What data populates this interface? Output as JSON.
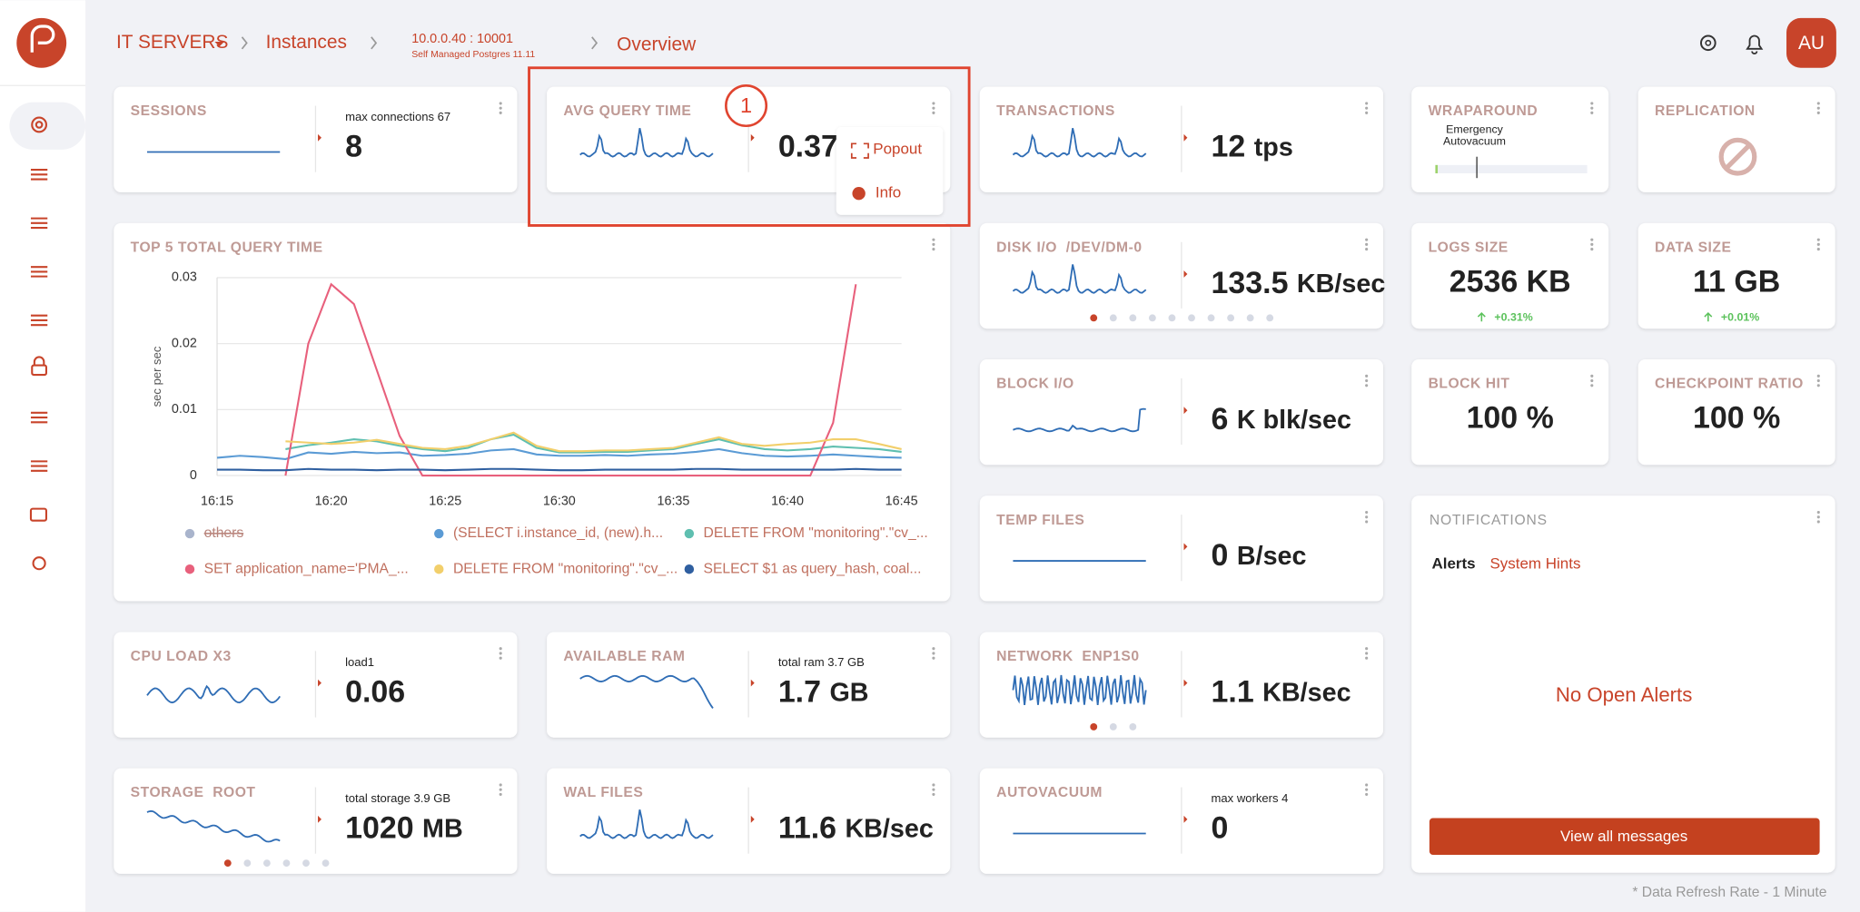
{
  "breadcrumb": {
    "root": "IT SERVERS",
    "instances": "Instances",
    "server": "10.0.0.40 : 10001",
    "server_type": "Self Managed Postgres 11.11",
    "current": "Overview"
  },
  "avatar": "AU",
  "metric_cards": [
    {
      "title": "SESSIONS",
      "label": "max connections 67",
      "value": "8"
    },
    {
      "title": "AVG QUERY TIME",
      "value": "0.37"
    },
    {
      "title": "TRANSACTIONS",
      "value": "12",
      "unit": "tps"
    },
    {
      "title": "WRAPAROUND",
      "label": "Emergency Autovacuum"
    },
    {
      "title": "REPLICATION"
    },
    {
      "title": "DISK I/O  /DEV/DM-0",
      "value": "133.5",
      "unit": "KB/sec"
    },
    {
      "title": "LOGS SIZE",
      "value": "2536 KB",
      "change": "+0.31%"
    },
    {
      "title": "DATA SIZE",
      "value": "11 GB",
      "change": "+0.01%"
    },
    {
      "title": "BLOCK I/O",
      "value": "6",
      "unit": "K blk/sec"
    },
    {
      "title": "BLOCK HIT",
      "value": "100 %"
    },
    {
      "title": "CHECKPOINT RATIO",
      "value": "100 %"
    },
    {
      "title": "TEMP FILES",
      "value": "0",
      "unit": "B/sec"
    },
    {
      "title": "CPU LOAD X3",
      "label": "load1",
      "value": "0.06"
    },
    {
      "title": "AVAILABLE RAM",
      "label": "total ram 3.7 GB",
      "value": "1.7",
      "unit": "GB"
    },
    {
      "title": "NETWORK  ENP1S0",
      "value": "1.1",
      "unit": "KB/sec"
    },
    {
      "title": "STORAGE  ROOT",
      "label": "total storage 3.9 GB",
      "value": "1020",
      "unit": "MB"
    },
    {
      "title": "WAL FILES",
      "value": "11.6",
      "unit": "KB/sec"
    },
    {
      "title": "AUTOVACUUM",
      "label": "max workers 4",
      "value": "0"
    }
  ],
  "popup": {
    "marker": "1",
    "items": [
      "Popout",
      "Info"
    ]
  },
  "query_chart": {
    "type": "line",
    "title": "TOP 5 TOTAL QUERY TIME",
    "y_label": "sec per sec",
    "categories": [
      "16:15",
      null,
      null,
      null,
      null,
      "16:20",
      null,
      null,
      null,
      null,
      "16:25",
      null,
      null,
      null,
      null,
      "16:30",
      null,
      null,
      null,
      null,
      "16:35",
      null,
      null,
      null,
      null,
      "16:40",
      null,
      null,
      null,
      null,
      "16:45"
    ],
    "ylim": [
      0,
      0.03
    ],
    "yticks": [
      0,
      0.01,
      0.02,
      0.03
    ],
    "grid": true,
    "series": [
      {
        "name": "others",
        "color": "#a9b4cc",
        "hidden": true
      },
      {
        "name": "(SELECT i.instance_id, (new).h...",
        "color": "#5b9bd5",
        "values": [
          0.0027,
          0.003,
          0.0028,
          0.0025,
          0.0035,
          0.0033,
          0.0036,
          0.0034,
          0.0035,
          0.003,
          0.0031,
          0.0033,
          0.0038,
          0.004,
          0.0032,
          0.003,
          0.003,
          0.0031,
          0.003,
          0.0032,
          0.0033,
          0.0036,
          0.004,
          0.0034,
          0.003,
          0.0029,
          0.003,
          0.0032,
          0.003,
          0.0028,
          0.0027
        ]
      },
      {
        "name": "DELETE FROM \"monitoring\".\"cv_...",
        "color": "#5fbfb0",
        "values": [
          null,
          null,
          null,
          0.004,
          0.0046,
          0.005,
          0.0055,
          0.0052,
          0.0045,
          0.004,
          0.0037,
          0.0042,
          0.0055,
          0.0062,
          0.0042,
          0.0035,
          0.0035,
          0.0036,
          0.0036,
          0.0038,
          0.004,
          0.0048,
          0.0055,
          0.0046,
          0.004,
          0.0038,
          0.004,
          0.0044,
          0.0042,
          0.004,
          0.0036
        ]
      },
      {
        "name": "SET application_name='PMA_...",
        "color": "#e8607c",
        "values": [
          null,
          null,
          null,
          0,
          0.02,
          0.029,
          0.026,
          0.016,
          0.006,
          0,
          0,
          0,
          0,
          0,
          0,
          0,
          0,
          0,
          0,
          0,
          0,
          0,
          0,
          0,
          0,
          0,
          0,
          0.008,
          0.029,
          null,
          null
        ]
      },
      {
        "name": "DELETE FROM \"monitoring\".\"cv_...",
        "color": "#f2cf6b",
        "values": [
          null,
          null,
          null,
          0.0052,
          0.005,
          0.0048,
          0.005,
          0.0054,
          0.0048,
          0.0042,
          0.004,
          0.0045,
          0.0055,
          0.0065,
          0.0045,
          0.0037,
          0.0037,
          0.0038,
          0.0038,
          0.004,
          0.0042,
          0.005,
          0.0058,
          0.0048,
          0.0045,
          0.0048,
          0.005,
          0.0055,
          0.0055,
          0.0048,
          0.004
        ]
      },
      {
        "name": "SELECT $1 as query_hash, coal...",
        "color": "#2f5fa0",
        "values": [
          0.0009,
          0.0009,
          0.0008,
          0.0008,
          0.001,
          0.0009,
          0.0009,
          0.0008,
          0.0009,
          0.0009,
          0.0008,
          0.0009,
          0.001,
          0.001,
          0.0009,
          0.0008,
          0.0008,
          0.0009,
          0.0009,
          0.0009,
          0.0009,
          0.001,
          0.001,
          0.0009,
          0.0009,
          0.0009,
          0.0009,
          0.0009,
          0.001,
          0.0009,
          0.0009
        ]
      }
    ]
  },
  "notifications": {
    "title": "NOTIFICATIONS",
    "tabs": [
      "Alerts",
      "System Hints"
    ],
    "empty": "No Open Alerts",
    "button": "View all messages"
  },
  "footer": "* Data Refresh Rate - 1 Minute"
}
